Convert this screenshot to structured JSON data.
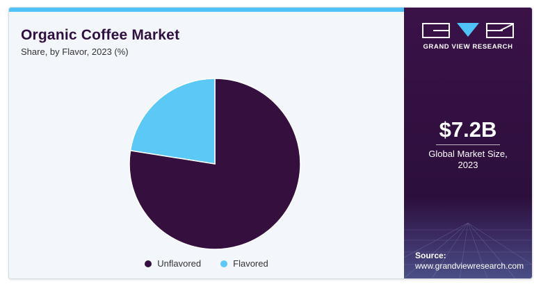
{
  "header": {
    "title": "Organic Coffee Market",
    "subtitle": "Share, by Flavor, 2023 (%)"
  },
  "brand": {
    "name": "GRAND VIEW RESEARCH"
  },
  "stat": {
    "value": "$7.2B",
    "label_line1": "Global Market Size,",
    "label_line2": "2023"
  },
  "source": {
    "label": "Source:",
    "url": "www.grandviewresearch.com"
  },
  "colors": {
    "accent_bar": "#4fc3f7",
    "panel": "#2c0f3c"
  },
  "chart_data": {
    "type": "pie",
    "title": "Organic Coffee Market",
    "subtitle": "Share, by Flavor, 2023 (%)",
    "legend_position": "bottom",
    "slices": [
      {
        "name": "Unflavored",
        "value": 77.5,
        "color": "#35103f"
      },
      {
        "name": "Flavored",
        "value": 22.5,
        "color": "#5bc8f5"
      }
    ]
  }
}
